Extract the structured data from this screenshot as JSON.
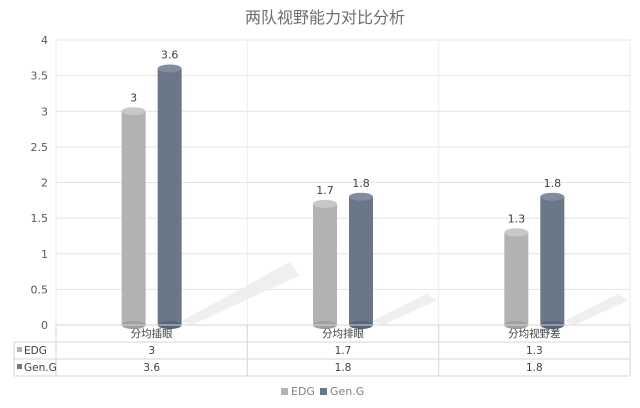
{
  "chart_data": {
    "type": "bar",
    "title": "两队视野能力对比分析",
    "categories": [
      "分均插眼",
      "分均排眼",
      "分均视野差"
    ],
    "series": [
      {
        "name": "EDG",
        "values": [
          3,
          1.7,
          1.3
        ],
        "color": "#b2b2b2"
      },
      {
        "name": "Gen.G",
        "values": [
          3.6,
          1.8,
          1.8
        ],
        "color": "#697789"
      }
    ],
    "ylim": [
      0,
      4
    ],
    "yticks": [
      "0",
      "0.5",
      "1",
      "1.5",
      "2",
      "2.5",
      "3",
      "3.5",
      "4"
    ],
    "data_labels": [
      [
        "3",
        "1.7",
        "1.3"
      ],
      [
        "3.6",
        "1.8",
        "1.8"
      ]
    ],
    "table": {
      "rows": [
        {
          "name": "EDG",
          "cells": [
            "3",
            "1.7",
            "1.3"
          ]
        },
        {
          "name": "Gen.G",
          "cells": [
            "3.6",
            "1.8",
            "1.8"
          ]
        }
      ]
    },
    "grid": true,
    "legend": "bottom-center",
    "bar_shape": "cylinder"
  }
}
